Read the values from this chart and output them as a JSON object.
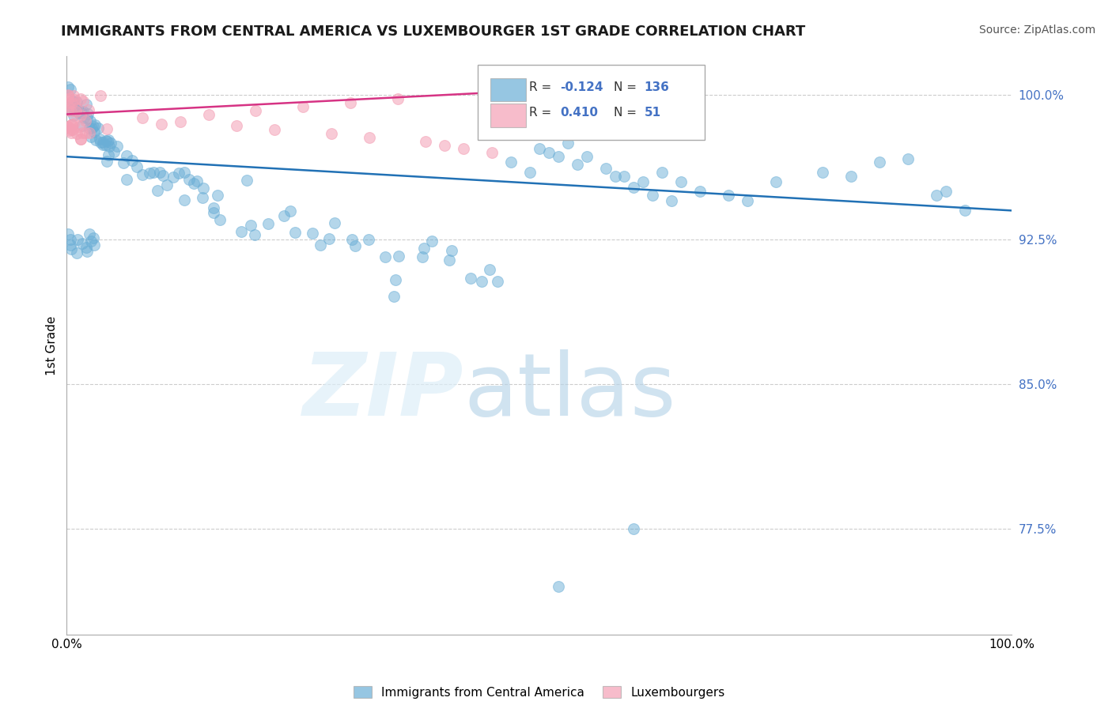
{
  "title": "IMMIGRANTS FROM CENTRAL AMERICA VS LUXEMBOURGER 1ST GRADE CORRELATION CHART",
  "source": "Source: ZipAtlas.com",
  "ylabel": "1st Grade",
  "y_tick_labels": [
    "77.5%",
    "85.0%",
    "92.5%",
    "100.0%"
  ],
  "y_tick_values": [
    0.775,
    0.85,
    0.925,
    1.0
  ],
  "legend_labels": [
    "Immigrants from Central America",
    "Luxembourgers"
  ],
  "blue_R": -0.124,
  "blue_N": 136,
  "pink_R": 0.41,
  "pink_N": 51,
  "blue_color": "#6aaed6",
  "pink_color": "#f4a0b5",
  "blue_line_color": "#2171b5",
  "pink_line_color": "#d63384",
  "xlim": [
    0.0,
    1.0
  ],
  "ylim": [
    0.72,
    1.02
  ]
}
